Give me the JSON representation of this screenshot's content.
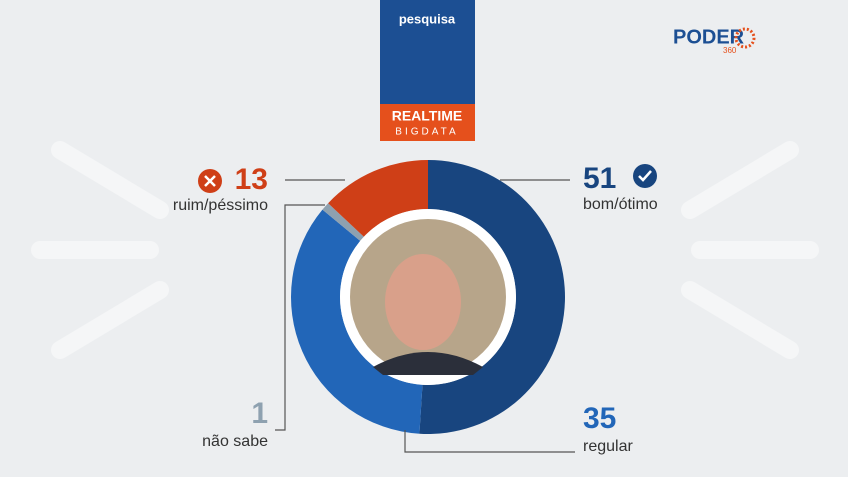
{
  "header": {
    "tag": "pesquisa",
    "partner_top": "REALTIME",
    "partner_bottom": "BIGDATA",
    "brand": "PODER",
    "brand_sub": "360"
  },
  "chart_data": {
    "type": "donut",
    "categories": [
      "bom/ótimo",
      "regular",
      "não sabe",
      "ruim/péssimo"
    ],
    "values": [
      51,
      35,
      1,
      13
    ],
    "colors": [
      "#18457f",
      "#2266b8",
      "#8ea1b0",
      "#cf3f17"
    ]
  }
}
